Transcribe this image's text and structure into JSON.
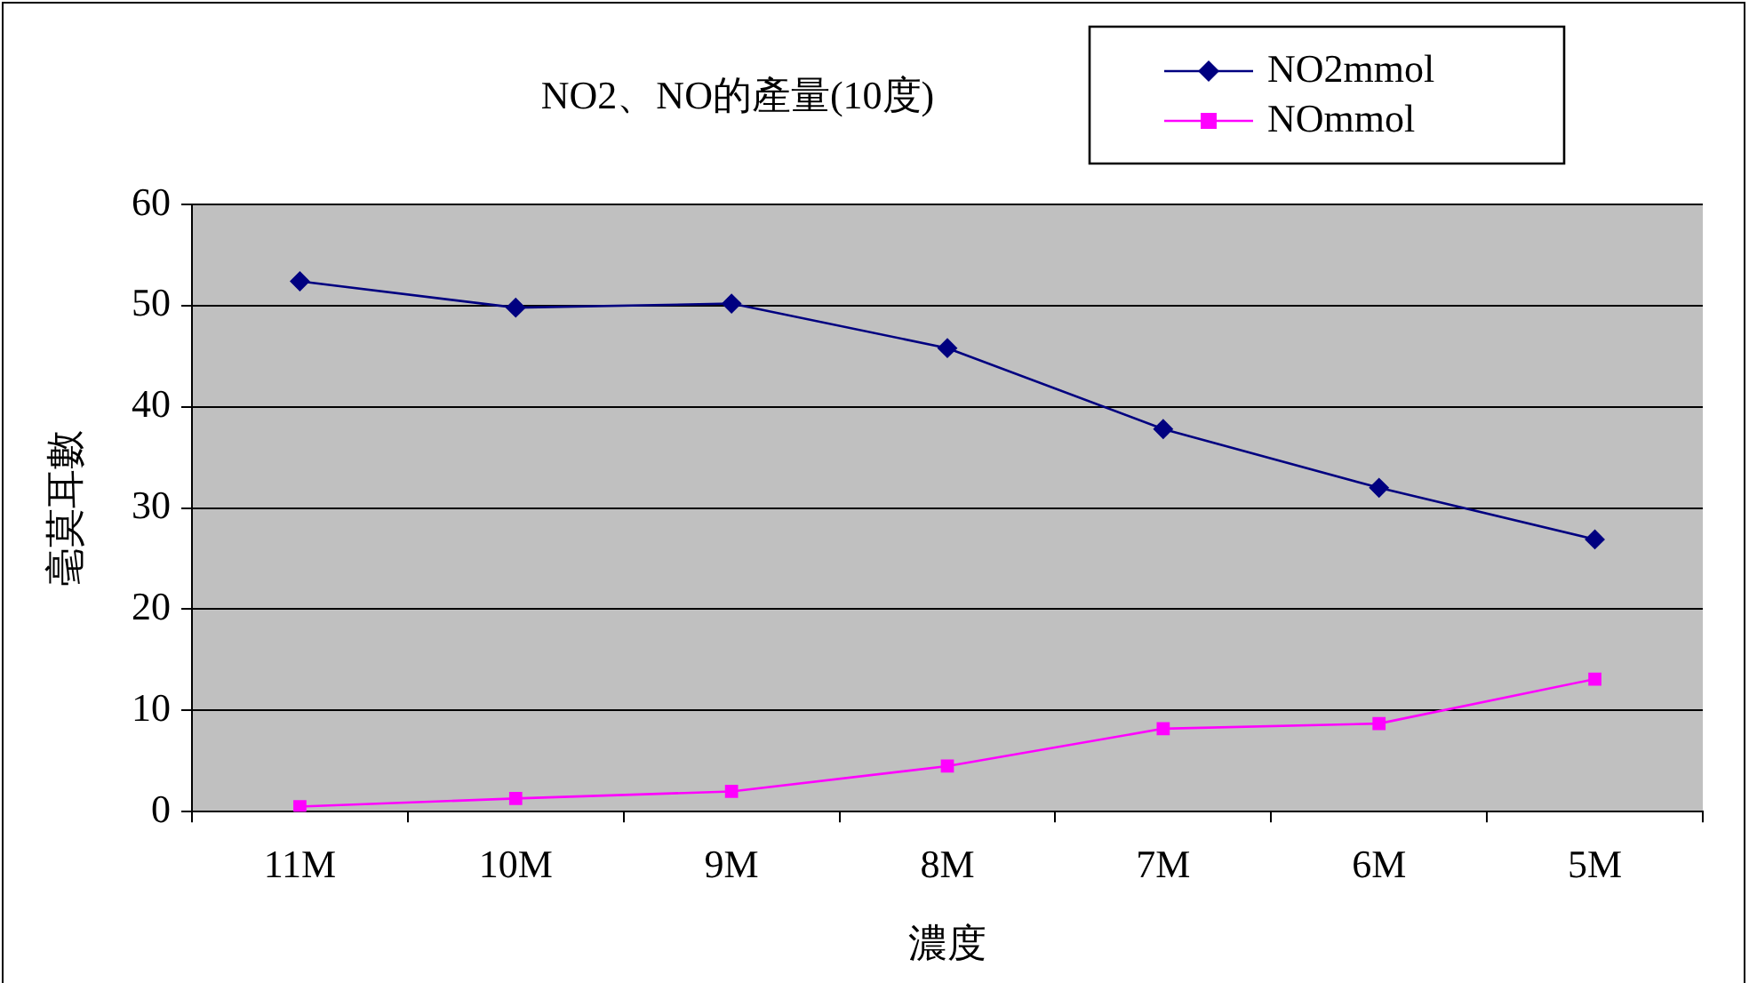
{
  "chart_data": {
    "type": "line",
    "title": "NO2、NO的產量(10度)",
    "xlabel": "濃度",
    "ylabel": "毫莫耳數",
    "categories": [
      "11M",
      "10M",
      "9M",
      "8M",
      "7M",
      "6M",
      "5M"
    ],
    "series": [
      {
        "name": "NO2mmol",
        "color": "#000080",
        "marker": "diamond",
        "values": [
          52.4,
          49.8,
          50.2,
          45.8,
          37.8,
          32,
          26.9
        ]
      },
      {
        "name": "NOmmol",
        "color": "#ff00ff",
        "marker": "square",
        "values": [
          0.5,
          1.3,
          2,
          4.5,
          8.2,
          8.7,
          13.1
        ]
      }
    ],
    "ylim": [
      0,
      60
    ],
    "yticks": [
      0,
      10,
      20,
      30,
      40,
      50,
      60
    ],
    "grid": "y",
    "legend": "top right",
    "line_style": "solid"
  }
}
